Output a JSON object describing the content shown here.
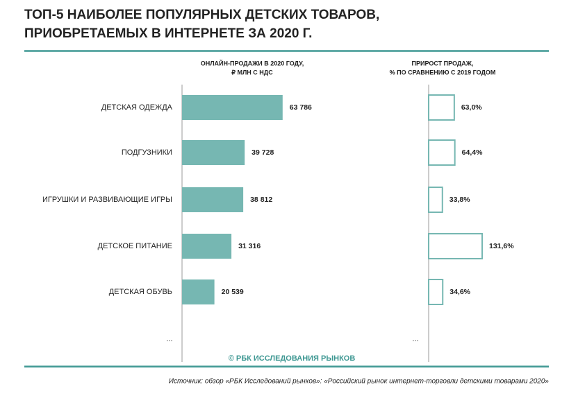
{
  "title": [
    "ТОП-5 НАИБОЛЕЕ ПОПУЛЯРНЫХ ДЕТСКИХ ТОВАРОВ,",
    "ПРИОБРЕТАЕМЫХ В ИНТЕРНЕТЕ ЗА 2020 Г."
  ],
  "credit": "© РБК ИССЛЕДОВАНИЯ РЫНКОВ",
  "source": "Источник: обзор «РБК Исследований рынков»: «Российский рынок интернет-торговли детскими товарами 2020»",
  "chart_data": [
    {
      "type": "bar",
      "orientation": "horizontal",
      "title": [
        "ОНЛАЙН-ПРОДАЖИ В 2020 ГОДУ,",
        "₽ МЛН С НДС"
      ],
      "categories": [
        "ДЕТСКАЯ ОДЕЖДА",
        "ПОДГУЗНИКИ",
        "ИГРУШКИ И РАЗВИВАЮЩИЕ ИГРЫ",
        "ДЕТСКОЕ ПИТАНИЕ",
        "ДЕТСКАЯ ОБУВЬ"
      ],
      "values": [
        63786,
        39728,
        38812,
        31316,
        20539
      ],
      "value_labels": [
        "63 786",
        "39 728",
        "38 812",
        "31 316",
        "20 539"
      ],
      "ellipsis": "...",
      "color": "#76b7b2",
      "outline": false,
      "xlim": [
        0,
        100000
      ]
    },
    {
      "type": "bar",
      "orientation": "horizontal",
      "title": [
        "ПРИРОСТ ПРОДАЖ,",
        "% ПО СРАВНЕНИЮ С 2019 ГОДОМ"
      ],
      "values": [
        63.0,
        64.4,
        33.8,
        131.6,
        34.6
      ],
      "value_labels": [
        "63,0%",
        "64,4%",
        "33,8%",
        "131,6%",
        "34,6%"
      ],
      "ellipsis": "...",
      "color": "#76b7b2",
      "outline": true,
      "xlim": [
        0,
        200
      ]
    }
  ]
}
